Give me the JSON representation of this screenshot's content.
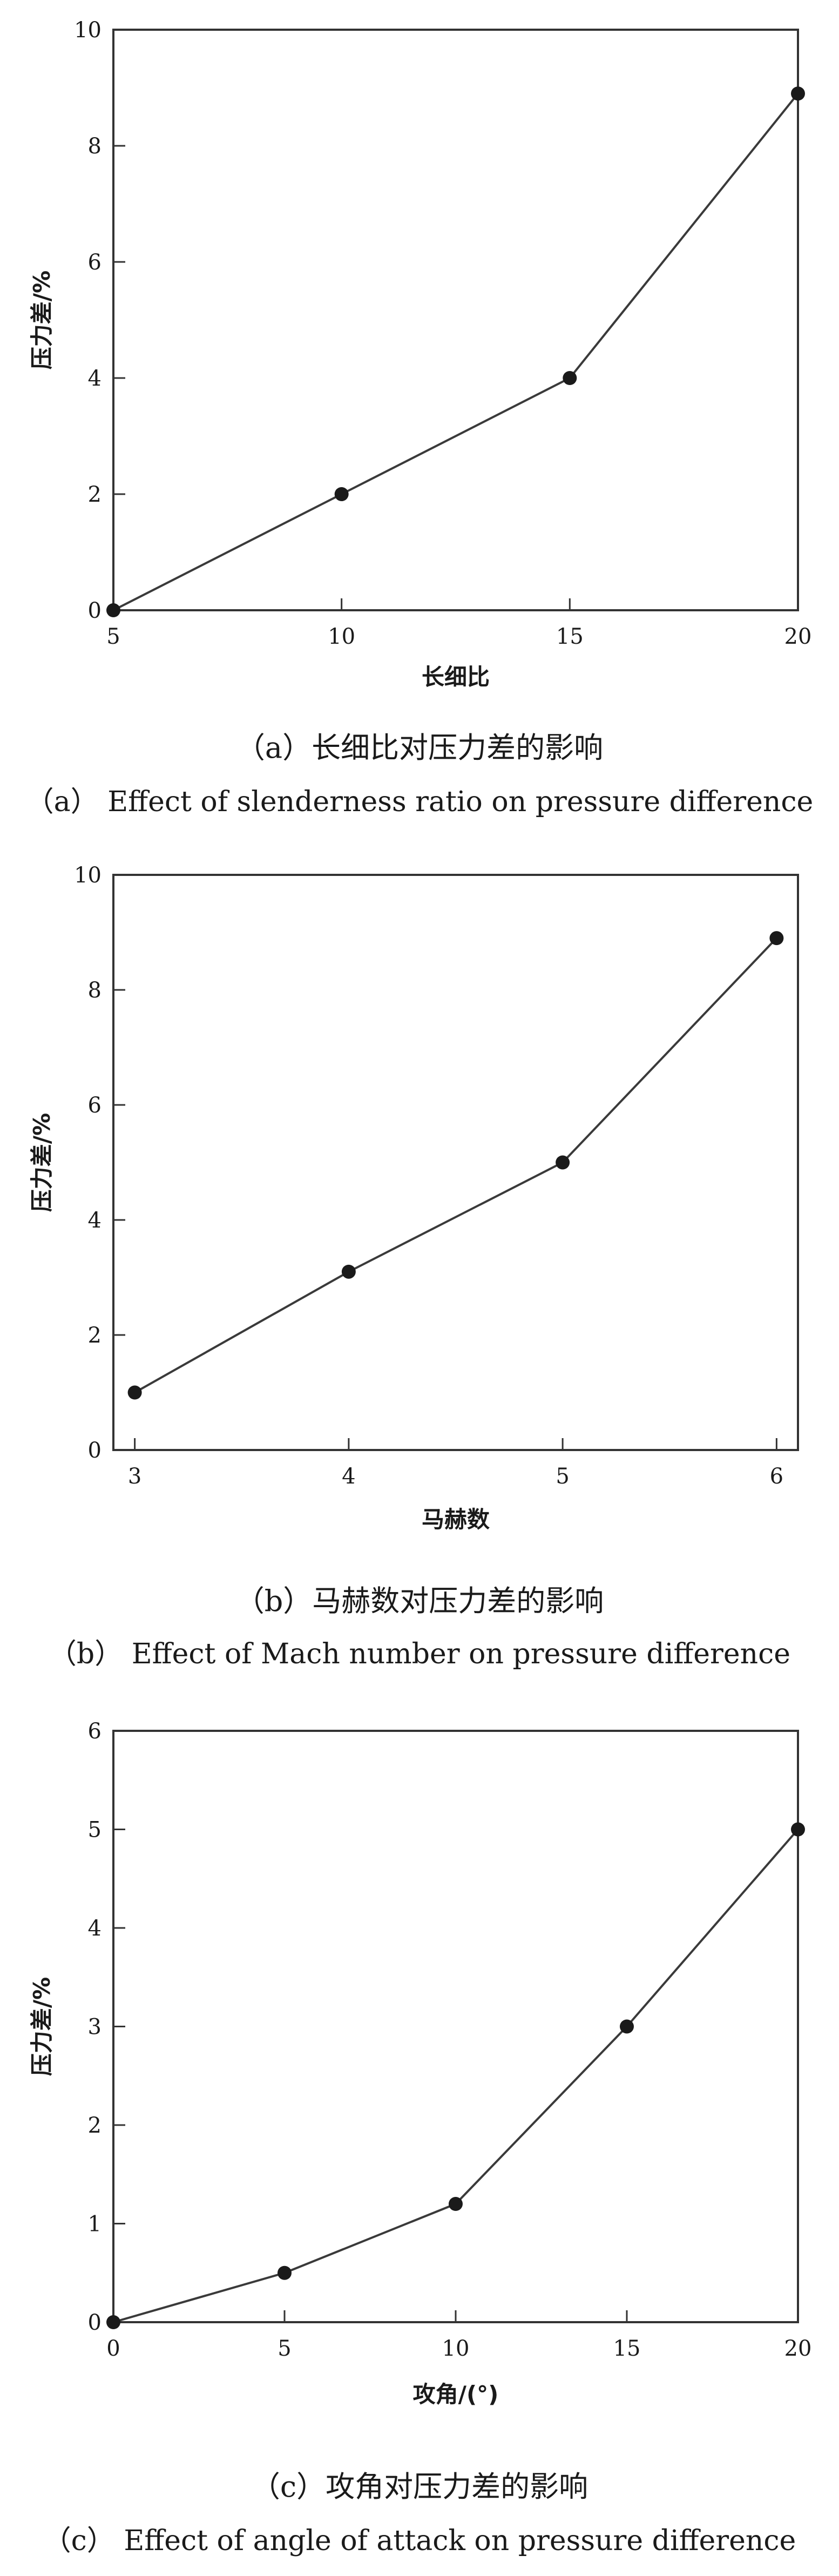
{
  "chart_data": [
    {
      "type": "line",
      "x": [
        5,
        10,
        15,
        20
      ],
      "series": [
        {
          "values": [
            0,
            2,
            4,
            8.9
          ]
        }
      ],
      "xlabel": "长细比",
      "ylabel": "压力差/%",
      "xlim": [
        5,
        20
      ],
      "ylim": [
        0,
        10
      ],
      "xticks": [
        5,
        10,
        15,
        20
      ],
      "yticks": [
        0,
        2,
        4,
        6,
        8,
        10
      ],
      "caption_cn": "（a）长细比对压力差的影响",
      "caption_en": "（a） Effect of slenderness ratio on pressure difference",
      "grid": false
    },
    {
      "type": "line",
      "x": [
        3,
        4,
        5,
        6
      ],
      "series": [
        {
          "values": [
            1,
            3.1,
            5,
            8.9
          ]
        }
      ],
      "xlabel": "马赫数",
      "ylabel": "压力差/%",
      "xlim": [
        2.9,
        6.1
      ],
      "ylim": [
        0,
        10
      ],
      "xticks": [
        3,
        4,
        5,
        6
      ],
      "yticks": [
        0,
        2,
        4,
        6,
        8,
        10
      ],
      "caption_cn": "（b）马赫数对压力差的影响",
      "caption_en": "（b） Effect of Mach number on pressure difference",
      "grid": false
    },
    {
      "type": "line",
      "x": [
        0,
        5,
        10,
        15,
        20
      ],
      "series": [
        {
          "values": [
            0,
            0.5,
            1.2,
            3,
            5
          ]
        }
      ],
      "xlabel": "攻角/(°)",
      "ylabel": "压力差/%",
      "xlim": [
        0,
        20
      ],
      "ylim": [
        0,
        6
      ],
      "xticks": [
        0,
        5,
        10,
        15,
        20
      ],
      "yticks": [
        0,
        1,
        2,
        3,
        4,
        5,
        6
      ],
      "caption_cn": "（c）攻角对压力差的影响",
      "caption_en": "（c） Effect of angle of attack on pressure difference",
      "grid": false
    }
  ]
}
